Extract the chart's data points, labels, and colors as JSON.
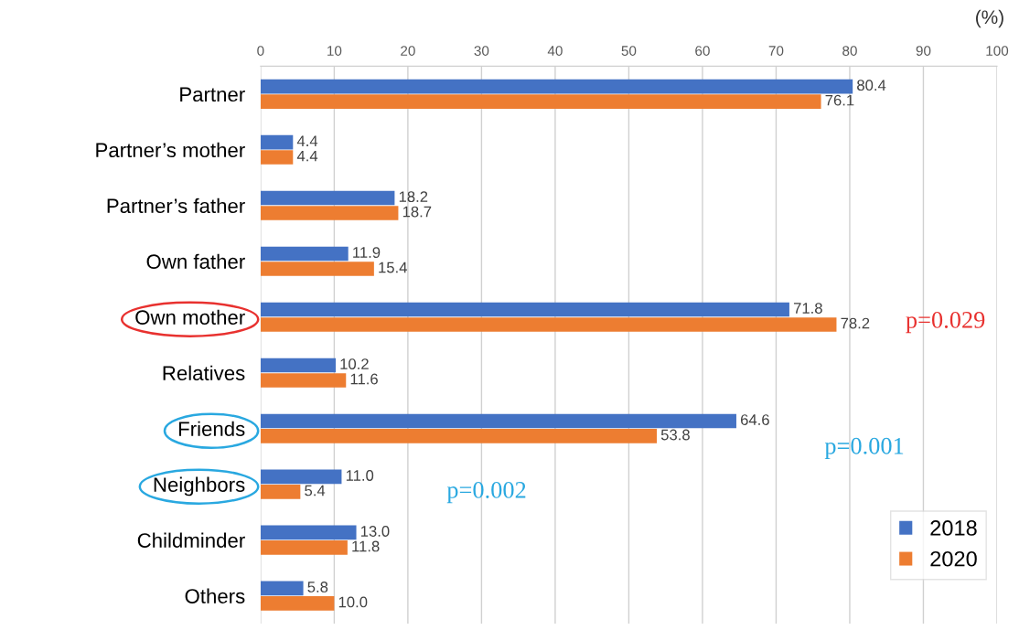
{
  "chart_data": {
    "type": "bar",
    "orientation": "horizontal",
    "categories": [
      "Partner",
      "Partner’s mother",
      "Partner’s father",
      "Own father",
      "Own mother",
      "Relatives",
      "Friends",
      "Neighbors",
      "Childminder",
      "Others"
    ],
    "series": [
      {
        "name": "2018",
        "color": "#4472c4",
        "values": [
          80.4,
          4.4,
          18.2,
          11.9,
          71.8,
          10.2,
          64.6,
          11.0,
          13.0,
          5.8
        ],
        "value_labels": [
          "80.4",
          "4.4",
          "18.2",
          "11.9",
          "71.8",
          "10.2",
          "64.6",
          "11.0",
          "13.0",
          "5.8"
        ]
      },
      {
        "name": "2020",
        "color": "#ed7d31",
        "values": [
          76.1,
          4.4,
          18.7,
          15.4,
          78.2,
          11.6,
          53.8,
          5.4,
          11.8,
          10.0
        ],
        "value_labels": [
          "76.1",
          "4.4",
          "18.7",
          "15.4",
          "78.2",
          "11.6",
          "53.8",
          "5.4",
          "11.8",
          "10.0"
        ]
      }
    ],
    "xlim": [
      0,
      100
    ],
    "xticks": [
      0,
      10,
      20,
      30,
      40,
      50,
      60,
      70,
      80,
      90,
      100
    ],
    "grid": "x",
    "legend": "bottom right",
    "annotations": [
      "(%)",
      "p=0.029",
      "p=0.001",
      "p=0.002"
    ]
  }
}
